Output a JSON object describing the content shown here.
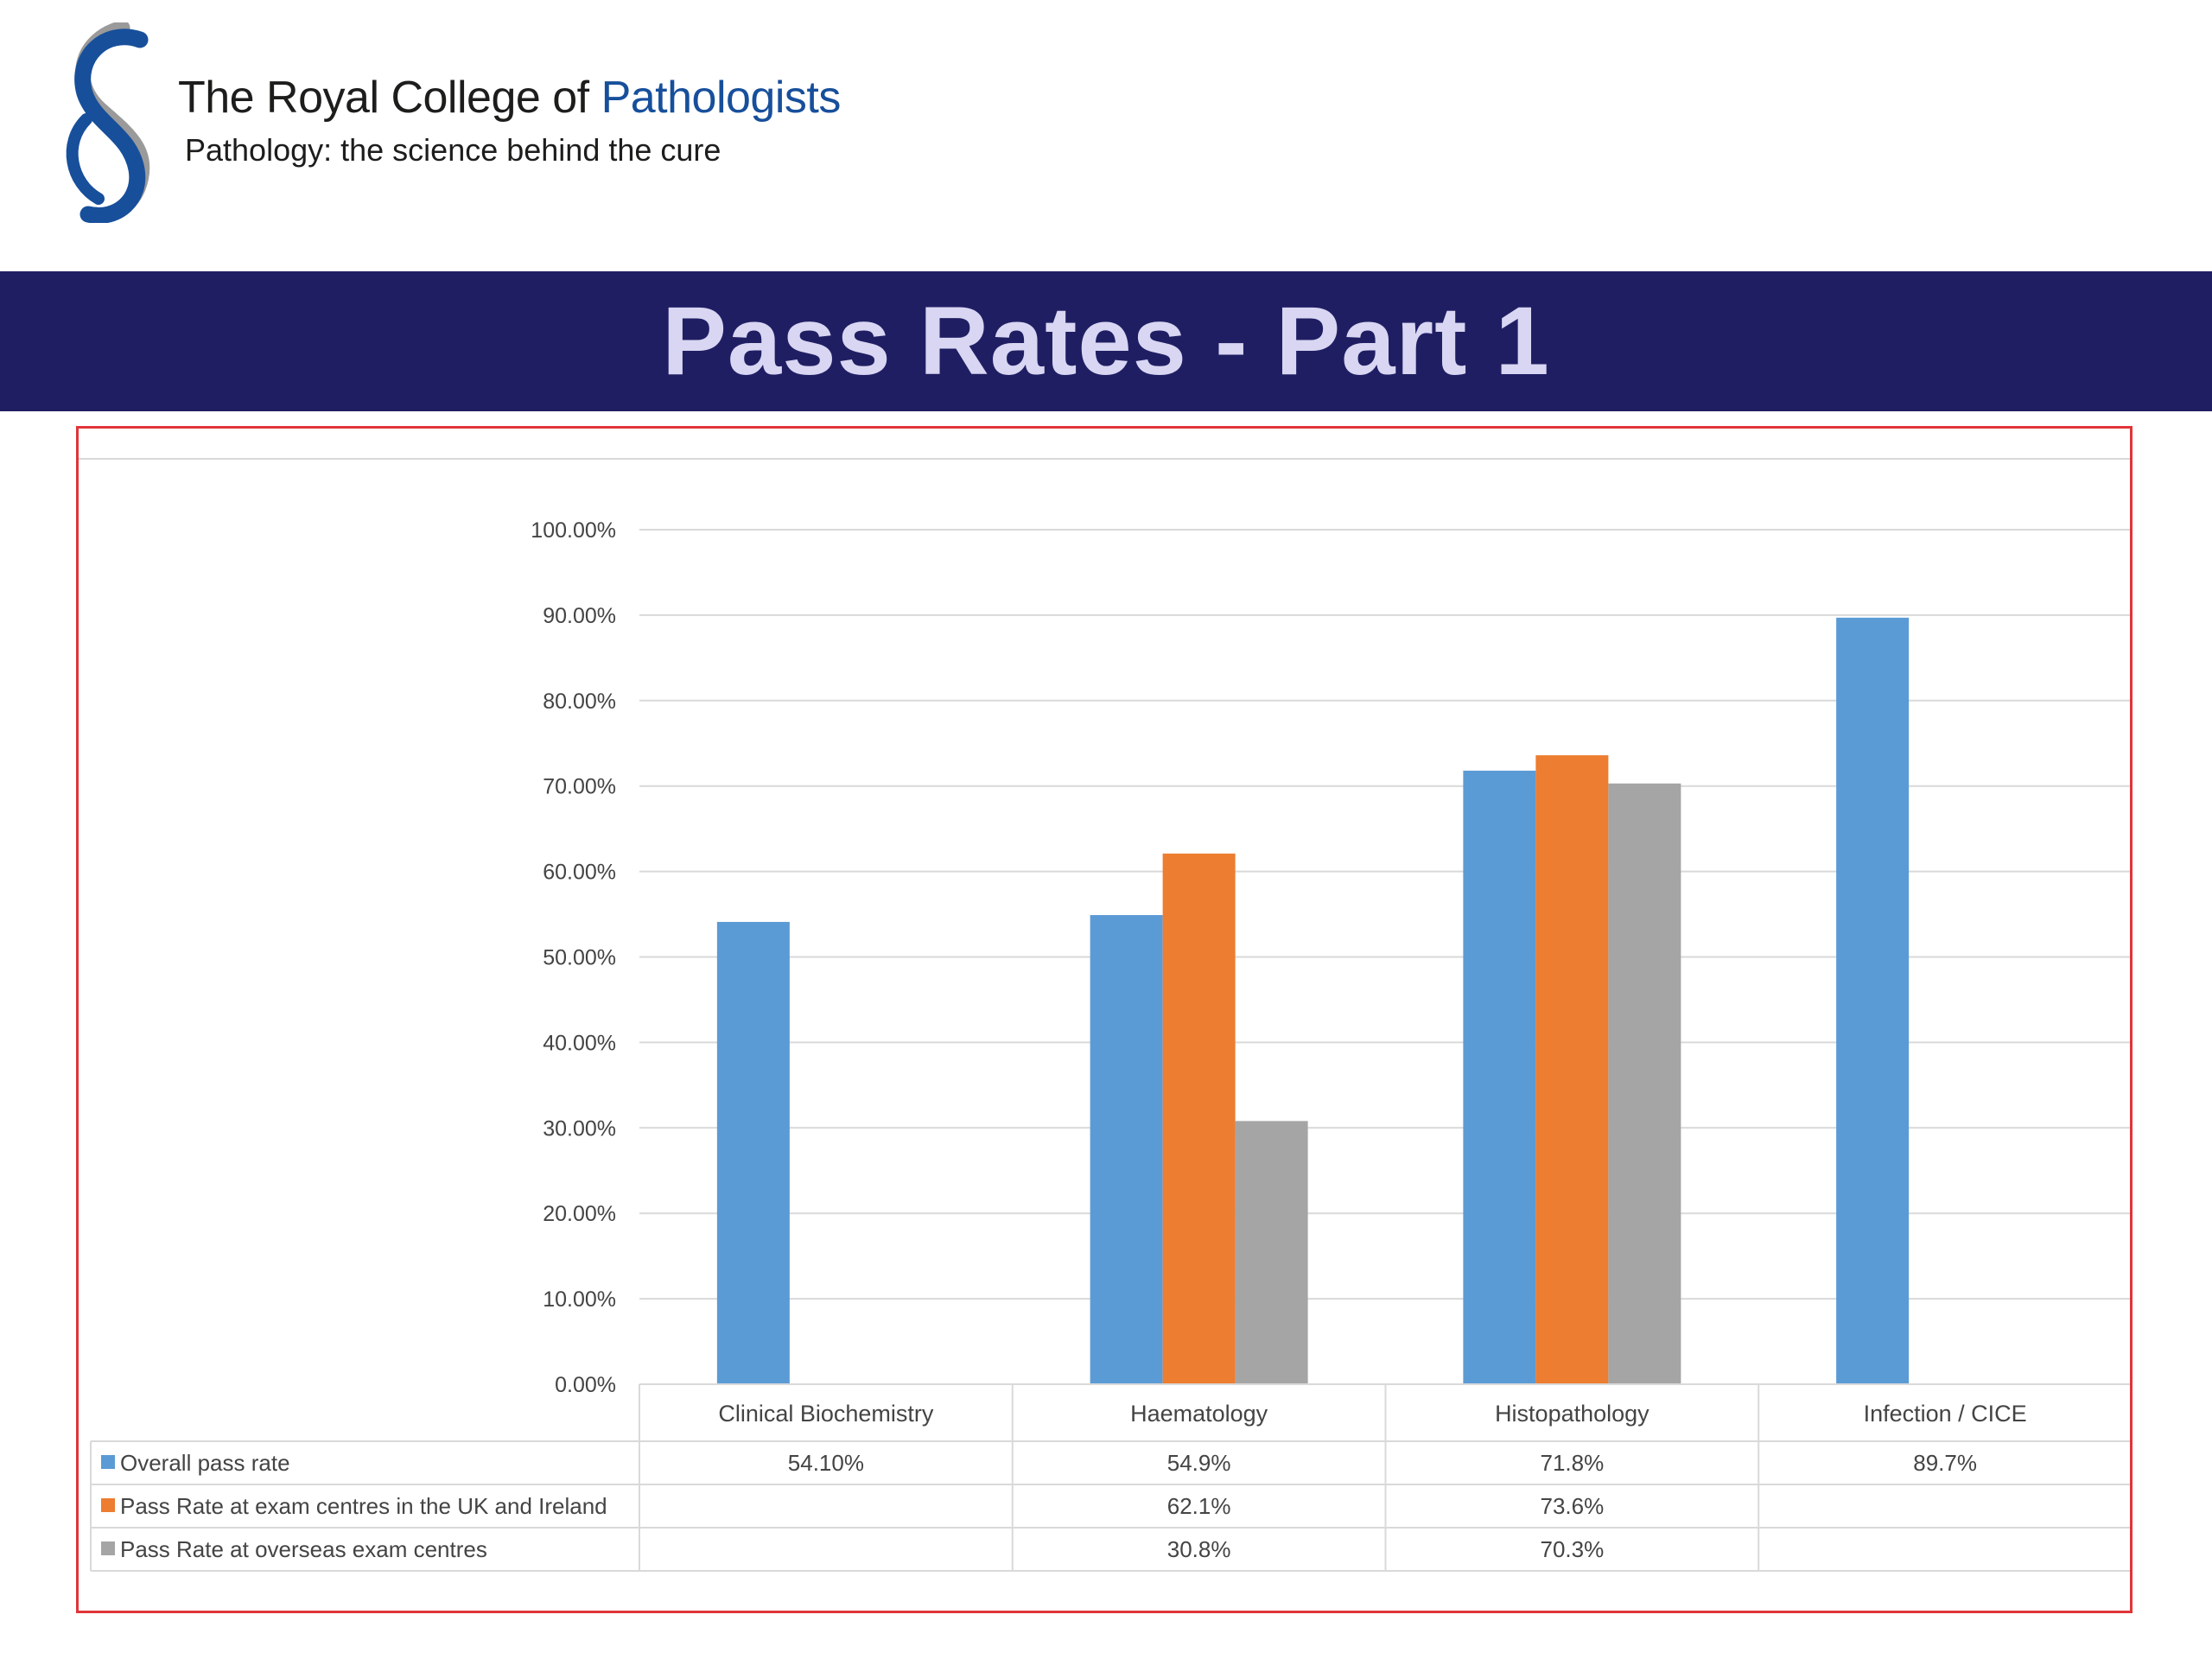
{
  "header": {
    "org_name_part1": "The Royal College of",
    "org_name_part2": "Pathologists",
    "tagline": "Pathology: the science behind the cure",
    "logo_icon": "rcpath-s-logo-icon"
  },
  "slide": {
    "title": "Pass Rates - Part 1"
  },
  "colors": {
    "brand_blue": "#174f9b",
    "title_band": "#201e63",
    "title_text": "#d8d6f2",
    "frame_border": "#e0353a",
    "series": [
      "#5b9bd5",
      "#ed7d31",
      "#a5a5a5"
    ]
  },
  "chart_data": {
    "type": "bar",
    "title": "",
    "xlabel": "",
    "ylabel": "",
    "ylim": [
      0,
      100
    ],
    "grid": true,
    "legend_placement": "data table below chart",
    "y_ticks": [
      "0.00%",
      "10.00%",
      "20.00%",
      "30.00%",
      "40.00%",
      "50.00%",
      "60.00%",
      "70.00%",
      "80.00%",
      "90.00%",
      "100.00%"
    ],
    "categories": [
      "Clinical Biochemistry",
      "Haematology",
      "Histopathology",
      "Infection / CICE"
    ],
    "series": [
      {
        "name": "Overall pass rate",
        "color": "#5b9bd5",
        "values": [
          54.1,
          54.9,
          71.8,
          89.7
        ],
        "labels": [
          "54.10%",
          "54.9%",
          "71.8%",
          "89.7%"
        ]
      },
      {
        "name": "Pass Rate at exam centres in the UK and Ireland",
        "color": "#ed7d31",
        "values": [
          null,
          62.1,
          73.6,
          null
        ],
        "labels": [
          "",
          "62.1%",
          "73.6%",
          ""
        ]
      },
      {
        "name": "Pass Rate at overseas exam centres",
        "color": "#a5a5a5",
        "values": [
          null,
          30.8,
          70.3,
          null
        ],
        "labels": [
          "",
          "30.8%",
          "70.3%",
          ""
        ]
      }
    ]
  }
}
